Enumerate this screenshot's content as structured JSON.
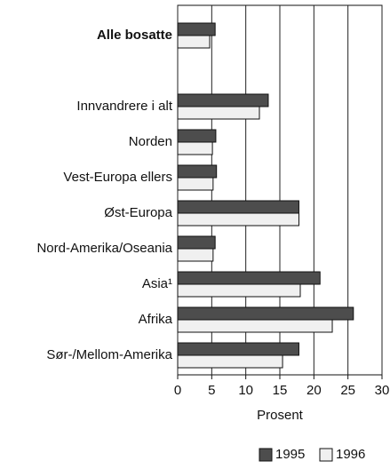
{
  "chart_data": {
    "type": "hbar",
    "x_label": "Prosent",
    "categories": [
      "Alle bosatte",
      null,
      "Innvandrere i alt",
      "Norden",
      "Vest-Europa ellers",
      "Øst-Europa",
      "Nord-Amerika/Oseania",
      "Asia¹",
      "Afrika",
      "Sør-/Mellom-Amerika"
    ],
    "series": [
      {
        "name": "1995",
        "color": "#4d4d4d",
        "values": [
          5.5,
          null,
          13.3,
          5.6,
          5.7,
          17.8,
          5.5,
          20.9,
          25.8,
          17.8
        ]
      },
      {
        "name": "1996",
        "color": "#f0f0f0",
        "values": [
          4.7,
          null,
          12.0,
          5.1,
          5.2,
          17.8,
          5.2,
          18.0,
          22.7,
          15.4
        ]
      }
    ],
    "xlim": [
      0,
      30
    ],
    "xticks": [
      0,
      5,
      10,
      15,
      20,
      25,
      30
    ],
    "grid": true
  }
}
